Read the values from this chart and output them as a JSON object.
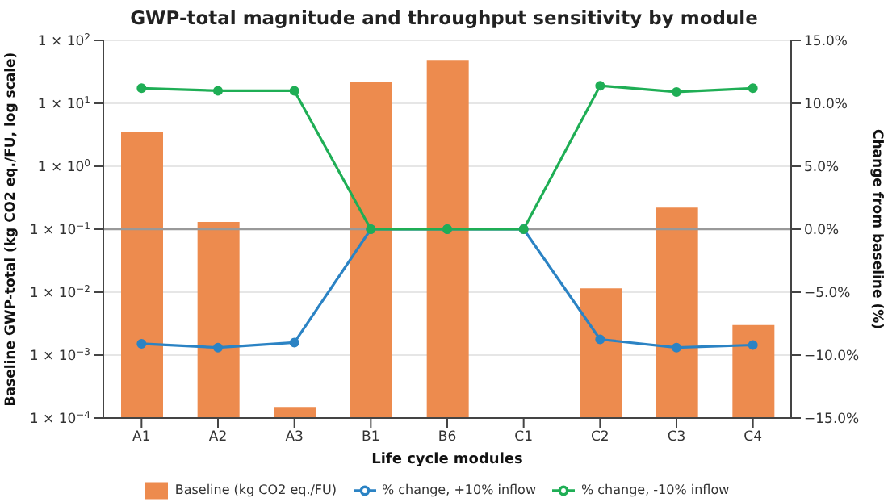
{
  "chart_data": {
    "type": "bar",
    "title": "GWP-total magnitude and throughput sensitivity by module",
    "xlabel": "Life cycle modules",
    "ylabel": "Baseline GWP-total (kg CO2 eq./FU, log scale)",
    "y2label": "Change from baseline (%)",
    "categories": [
      "A1",
      "A2",
      "A3",
      "B1",
      "B6",
      "C1",
      "C2",
      "C3",
      "C4"
    ],
    "series": [
      {
        "name": "Baseline (kg CO2 eq./FU)",
        "color": "#ed8b4e",
        "values": [
          3.5,
          0.13,
          0.00015,
          22,
          49,
          null,
          0.0115,
          0.22,
          0.003
        ]
      },
      {
        "name": "% change, +10% inflow",
        "type": "line",
        "axis": "y2",
        "color": "#2b83c4",
        "values": [
          -9.1,
          -9.4,
          -9.0,
          0,
          0,
          0,
          -8.75,
          -9.4,
          -9.2
        ]
      },
      {
        "name": "% change, -10% inflow",
        "type": "line",
        "axis": "y2",
        "color": "#1fae55",
        "values": [
          11.2,
          11.0,
          11.0,
          0,
          0,
          0,
          11.4,
          10.9,
          11.2
        ]
      }
    ],
    "log": "y",
    "ylim": [
      0.0001,
      100
    ],
    "yticks": [
      {
        "value": 0.0001,
        "label": "1 × 10$^{−4}$"
      },
      {
        "value": 0.001,
        "label": "1 × 10$^{−3}$"
      },
      {
        "value": 0.01,
        "label": "1 × 10$^{−2}$"
      },
      {
        "value": 0.1,
        "label": "1 × 10$^{−1}$"
      },
      {
        "value": 1,
        "label": "1 × 10$^{0}$"
      },
      {
        "value": 10,
        "label": "1 × 10$^{1}$"
      },
      {
        "value": 100,
        "label": "1 × 10$^{2}$"
      }
    ],
    "y2lim": [
      -15,
      15
    ],
    "y2ticks": [
      {
        "value": -15,
        "label": "−15.0%"
      },
      {
        "value": -10,
        "label": "−10.0%"
      },
      {
        "value": -5,
        "label": "−5.0%"
      },
      {
        "value": 0,
        "label": "0.0%"
      },
      {
        "value": 5,
        "label": "5.0%"
      },
      {
        "value": 10,
        "label": "10.0%"
      },
      {
        "value": 15,
        "label": "15.0%"
      }
    ],
    "ref_lines": [
      {
        "axis": "y2",
        "value": 0,
        "color": "#999999"
      }
    ],
    "grid": "y",
    "legend": "bottom",
    "marker": "circle"
  }
}
